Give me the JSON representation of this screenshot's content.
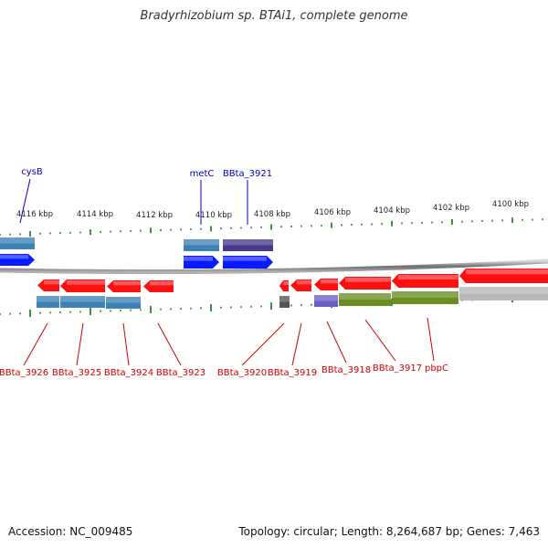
{
  "title": "Bradyrhizobium sp. BTAi1, complete genome",
  "footer": {
    "accession": "Accession: NC_009485",
    "summary": "Topology: circular; Length: 8,264,687 bp; Genes: 7,463"
  },
  "colors": {
    "forward_gene": "#0a1aff",
    "reverse_gene": "#ff1010",
    "cds_blue": "#3d82b4",
    "cds_purple": "#4a3a8c",
    "cds_lavender": "#6a5fc8",
    "cds_green": "#6b8e23",
    "cds_gray": "#b8b8b8",
    "pseudo_gray": "#555555",
    "tick": "#117711",
    "backbone": "#8a8a8a",
    "top_label": "#0000cc",
    "bottom_label": "#cc0000"
  },
  "scale_labels": [
    "4116 kbp",
    "4114 kbp",
    "4112 kbp",
    "4110 kbp",
    "4108 kbp",
    "4106 kbp",
    "4104 kbp",
    "4102 kbp",
    "4100 kbp"
  ],
  "top_labels": [
    "cysB",
    "metC",
    "BBta_3921"
  ],
  "bottom_labels": [
    "BBta_3926",
    "BBta_3925",
    "BBta_3924",
    "BBta_3923",
    "BBta_3920",
    "BBta_3919",
    "BBta_3918",
    "BBta_3917",
    "pbpC"
  ]
}
